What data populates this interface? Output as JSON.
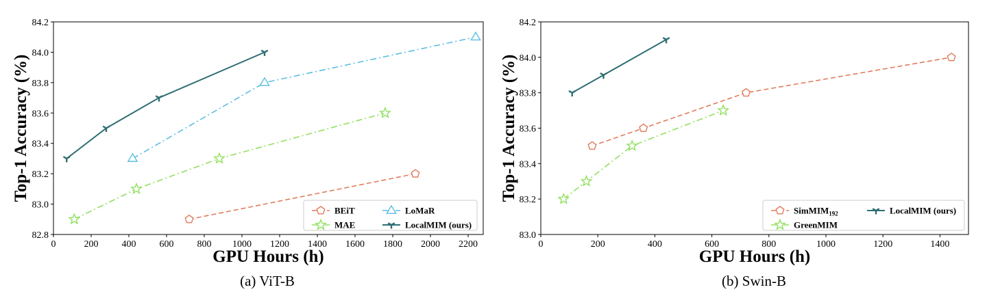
{
  "chart_data": [
    {
      "type": "line",
      "caption": "(a) ViT-B",
      "xlabel": "GPU Hours (h)",
      "ylabel": "Top-1 Accuracy (%)",
      "xlim": [
        0,
        2280
      ],
      "ylim": [
        82.8,
        84.2
      ],
      "xticks": [
        0,
        200,
        400,
        600,
        800,
        1000,
        1200,
        1400,
        1600,
        1800,
        2000,
        2200
      ],
      "yticks": [
        "82.8",
        "83.0",
        "83.2",
        "83.4",
        "83.6",
        "83.8",
        "84.0",
        "84.2"
      ],
      "grid": false,
      "legend_position": "lower-right",
      "legend_columns": 2,
      "series": [
        {
          "name": "BEiT",
          "color": "#E07B5B",
          "dash": "dashed",
          "marker": "pentagon",
          "x": [
            720,
            1920
          ],
          "y": [
            82.9,
            83.2
          ]
        },
        {
          "name": "MAE",
          "color": "#90E060",
          "dash": "dashdot",
          "marker": "star",
          "x": [
            110,
            440,
            880,
            1760
          ],
          "y": [
            82.9,
            83.1,
            83.3,
            83.6
          ]
        },
        {
          "name": "LoMaR",
          "color": "#5BBEE0",
          "dash": "dashdot",
          "marker": "triangle",
          "x": [
            420,
            1120,
            2240
          ],
          "y": [
            83.3,
            83.8,
            84.1
          ]
        },
        {
          "name": "LocalMIM (ours)",
          "color": "#2E6E73",
          "dash": "solid",
          "marker": "tri-down",
          "x": [
            70,
            280,
            560,
            1120
          ],
          "y": [
            83.3,
            83.5,
            83.7,
            84.0
          ]
        }
      ]
    },
    {
      "type": "line",
      "caption": "(b) Swin-B",
      "xlabel": "GPU Hours (h)",
      "ylabel": "Top-1 Accuracy (%)",
      "xlim": [
        0,
        1500
      ],
      "ylim": [
        83.0,
        84.2
      ],
      "xticks": [
        0,
        200,
        400,
        600,
        800,
        1000,
        1200,
        1400
      ],
      "yticks": [
        "83.0",
        "83.2",
        "83.4",
        "83.6",
        "83.8",
        "84.0",
        "84.2"
      ],
      "grid": false,
      "legend_position": "lower-right",
      "legend_columns": 2,
      "series": [
        {
          "name": "SimMIM",
          "name_sub": "192",
          "color": "#E07B5B",
          "dash": "dashed",
          "marker": "pentagon",
          "x": [
            180,
            360,
            720,
            1440
          ],
          "y": [
            83.5,
            83.6,
            83.8,
            84.0
          ]
        },
        {
          "name": "GreenMIM",
          "color": "#90E060",
          "dash": "dashdot",
          "marker": "star",
          "x": [
            80,
            160,
            320,
            640
          ],
          "y": [
            83.2,
            83.3,
            83.5,
            83.7
          ]
        },
        {
          "name": "LocalMIM (ours)",
          "color": "#2E6E73",
          "dash": "solid",
          "marker": "tri-down",
          "x": [
            110,
            220,
            440
          ],
          "y": [
            83.8,
            83.9,
            84.1
          ]
        }
      ]
    }
  ]
}
